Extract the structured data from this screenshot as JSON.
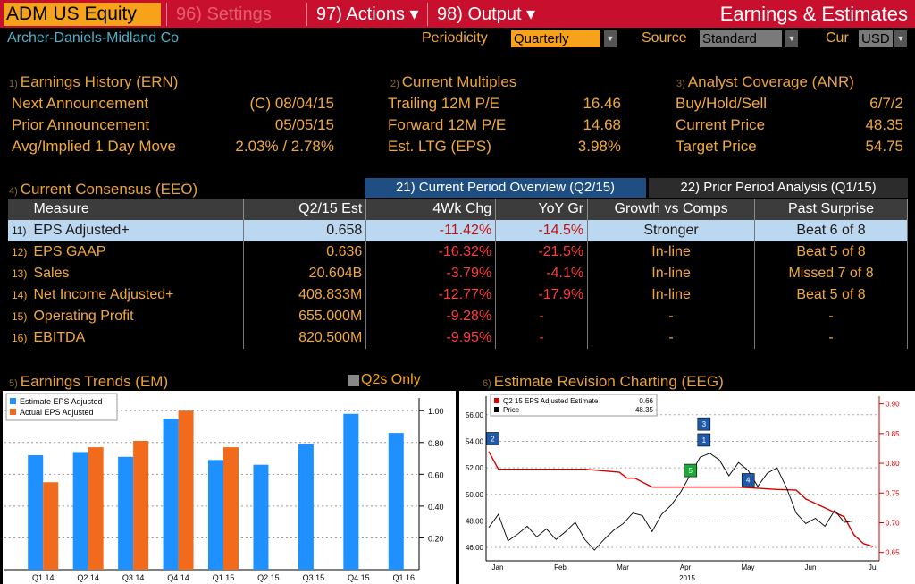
{
  "header": {
    "ticker": "ADM US Equity",
    "menus": [
      "96) Settings",
      "97) Actions ▾",
      "98) Output ▾"
    ],
    "page_title": "Earnings & Estimates"
  },
  "company": "Archer-Daniels-Midland Co",
  "controls": {
    "periodicity_label": "Periodicity",
    "periodicity_value": "Quarterly",
    "source_label": "Source",
    "source_value": "Standard",
    "cur_label": "Cur",
    "cur_value": "USD"
  },
  "earnings_history": {
    "num": "1)",
    "title": "Earnings History (ERN)",
    "rows": [
      {
        "label": "Next Announcement",
        "value": "(C)  08/04/15"
      },
      {
        "label": "Prior Announcement",
        "value": "05/05/15"
      },
      {
        "label": "Avg/Implied 1 Day Move",
        "value": "2.03% / 2.78%"
      }
    ]
  },
  "current_multiples": {
    "num": "2)",
    "title": "Current Multiples",
    "rows": [
      {
        "label": "Trailing 12M P/E",
        "value": "16.46"
      },
      {
        "label": "Forward 12M P/E",
        "value": "14.68"
      },
      {
        "label": "Est. LTG (EPS)",
        "value": "3.98%"
      }
    ]
  },
  "analyst_coverage": {
    "num": "3)",
    "title": "Analyst Coverage (ANR)",
    "rows": [
      {
        "label": "Buy/Hold/Sell",
        "value": "6/7/2"
      },
      {
        "label": "Current Price",
        "value": "48.35"
      },
      {
        "label": "Target Price",
        "value": "54.75"
      }
    ]
  },
  "consensus": {
    "num": "4)",
    "title": "Current Consensus (EEO)",
    "tab_current": "21) Current Period Overview (Q2/15)",
    "tab_prior": "22) Prior Period Analysis (Q1/15)",
    "columns": [
      "Measure",
      "Q2/15 Est",
      "4Wk Chg",
      "YoY Gr",
      "Growth vs Comps",
      "Past Surprise"
    ],
    "rows": [
      {
        "idx": "11)",
        "measure": "EPS Adjusted+",
        "est": "0.658",
        "chg4wk": "-11.42%",
        "yoy": "-14.5%",
        "growth": "Stronger",
        "surprise": "Beat 6 of 8"
      },
      {
        "idx": "12)",
        "measure": "EPS GAAP",
        "est": "0.636",
        "chg4wk": "-16.32%",
        "yoy": "-21.5%",
        "growth": "In-line",
        "surprise": "Beat 5 of 8"
      },
      {
        "idx": "13)",
        "measure": "Sales",
        "est": "20.604B",
        "chg4wk": "-3.79%",
        "yoy": "-4.1%",
        "growth": "In-line",
        "surprise": "Missed 7 of 8"
      },
      {
        "idx": "14)",
        "measure": "Net Income Adjusted+",
        "est": "408.833M",
        "chg4wk": "-12.77%",
        "yoy": "-17.9%",
        "growth": "In-line",
        "surprise": "Beat 5 of 8"
      },
      {
        "idx": "15)",
        "measure": "Operating Profit",
        "est": "655.000M",
        "chg4wk": "-9.28%",
        "yoy": "-",
        "growth": "-",
        "surprise": "-"
      },
      {
        "idx": "16)",
        "measure": "EBITDA",
        "est": "820.500M",
        "chg4wk": "-9.95%",
        "yoy": "-",
        "growth": "-",
        "surprise": "-"
      }
    ]
  },
  "earnings_trends": {
    "num": "5)",
    "title": "Earnings Trends (EM)",
    "q2s_label": "Q2s Only"
  },
  "revision_chart": {
    "num": "6)",
    "title": "Estimate Revision Charting (EEG)"
  },
  "chart_data": [
    {
      "type": "bar",
      "categories": [
        "Q1 14",
        "Q2 14",
        "Q3 14",
        "Q4 14",
        "Q1 15",
        "Q2 15",
        "Q3 15",
        "Q4 15",
        "Q1 16"
      ],
      "series": [
        {
          "name": "Estimate EPS Adjusted",
          "color": "#1e90ff",
          "values": [
            0.72,
            0.74,
            0.71,
            0.95,
            0.69,
            0.66,
            0.79,
            0.98,
            0.86
          ]
        },
        {
          "name": "Actual EPS Adjusted",
          "color": "#f26b1d",
          "values": [
            0.55,
            0.77,
            0.81,
            1.0,
            0.77,
            null,
            null,
            null,
            null
          ]
        }
      ],
      "yticks": [
        "1.00",
        "0.80",
        "0.60",
        "0.40",
        "0.20"
      ],
      "ylim": [
        0,
        1.08
      ],
      "legend": "top-left"
    },
    {
      "type": "line",
      "x_labels": [
        "Jan",
        "Feb",
        "Mar",
        "Apr",
        "May",
        "Jun",
        "Jul"
      ],
      "x_year": "2015",
      "legend": [
        {
          "name": "Q2 15 EPS Adjusted Estimate",
          "value": "0.66",
          "color": "#d40000"
        },
        {
          "name": "Price",
          "value": "48.35",
          "color": "#000000"
        }
      ],
      "left_ticks": [
        "56.00",
        "54.00",
        "52.00",
        "50.00",
        "48.00",
        "46.00"
      ],
      "right_ticks": [
        "0.90",
        "0.85",
        "0.80",
        "0.75",
        "0.70",
        "0.65"
      ],
      "left_ylim": [
        45,
        57.4
      ],
      "right_ylim": [
        0.636,
        0.913
      ],
      "estimate": [
        [
          0,
          0.82
        ],
        [
          0.05,
          0.79
        ],
        [
          0.25,
          0.79
        ],
        [
          0.5,
          0.79
        ],
        [
          0.68,
          0.785
        ],
        [
          0.72,
          0.775
        ],
        [
          0.76,
          0.775
        ],
        [
          0.85,
          0.76
        ],
        [
          0.92,
          0.76
        ],
        [
          1.0,
          0.76
        ],
        [
          1.2,
          0.76
        ],
        [
          1.3,
          0.76
        ],
        [
          1.4,
          0.758
        ],
        [
          1.5,
          0.756
        ],
        [
          1.6,
          0.755
        ],
        [
          1.65,
          0.74
        ],
        [
          1.75,
          0.725
        ],
        [
          1.85,
          0.71
        ],
        [
          1.9,
          0.68
        ],
        [
          1.95,
          0.665
        ],
        [
          2.0,
          0.66
        ]
      ],
      "price": [
        [
          0,
          47.5
        ],
        [
          0.05,
          48.5
        ],
        [
          0.1,
          46.5
        ],
        [
          0.15,
          47.0
        ],
        [
          0.2,
          47.6
        ],
        [
          0.25,
          46.8
        ],
        [
          0.3,
          47.4
        ],
        [
          0.35,
          46.6
        ],
        [
          0.4,
          47.2
        ],
        [
          0.45,
          47.9
        ],
        [
          0.5,
          46.6
        ],
        [
          0.55,
          45.8
        ],
        [
          0.6,
          46.6
        ],
        [
          0.65,
          47.3
        ],
        [
          0.7,
          47.8
        ],
        [
          0.75,
          48.6
        ],
        [
          0.8,
          48.4
        ],
        [
          0.85,
          47.2
        ],
        [
          0.9,
          48.5
        ],
        [
          0.95,
          49.2
        ],
        [
          1.0,
          50.2
        ],
        [
          1.05,
          51.5
        ],
        [
          1.1,
          52.8
        ],
        [
          1.15,
          53.1
        ],
        [
          1.2,
          52.6
        ],
        [
          1.25,
          51.4
        ],
        [
          1.3,
          52.4
        ],
        [
          1.35,
          51.8
        ],
        [
          1.4,
          50.6
        ],
        [
          1.45,
          51.6
        ],
        [
          1.5,
          52.0
        ],
        [
          1.55,
          50.5
        ],
        [
          1.6,
          48.6
        ],
        [
          1.65,
          47.8
        ],
        [
          1.7,
          48.2
        ],
        [
          1.75,
          47.6
        ],
        [
          1.8,
          48.8
        ],
        [
          1.85,
          47.9
        ],
        [
          1.9,
          48.0
        ]
      ],
      "markers": [
        {
          "label": "2",
          "color": "#1f5aa8",
          "x": 0.02,
          "y": 54.2
        },
        {
          "label": "3",
          "color": "#1f5aa8",
          "x": 1.12,
          "y": 55.3
        },
        {
          "label": "1",
          "color": "#1f5aa8",
          "x": 1.12,
          "y": 54.1
        },
        {
          "label": "5",
          "color": "#1ea838",
          "x": 1.05,
          "y": 51.8
        },
        {
          "label": "4",
          "color": "#1f5aa8",
          "x": 1.35,
          "y": 51.1
        }
      ]
    }
  ]
}
